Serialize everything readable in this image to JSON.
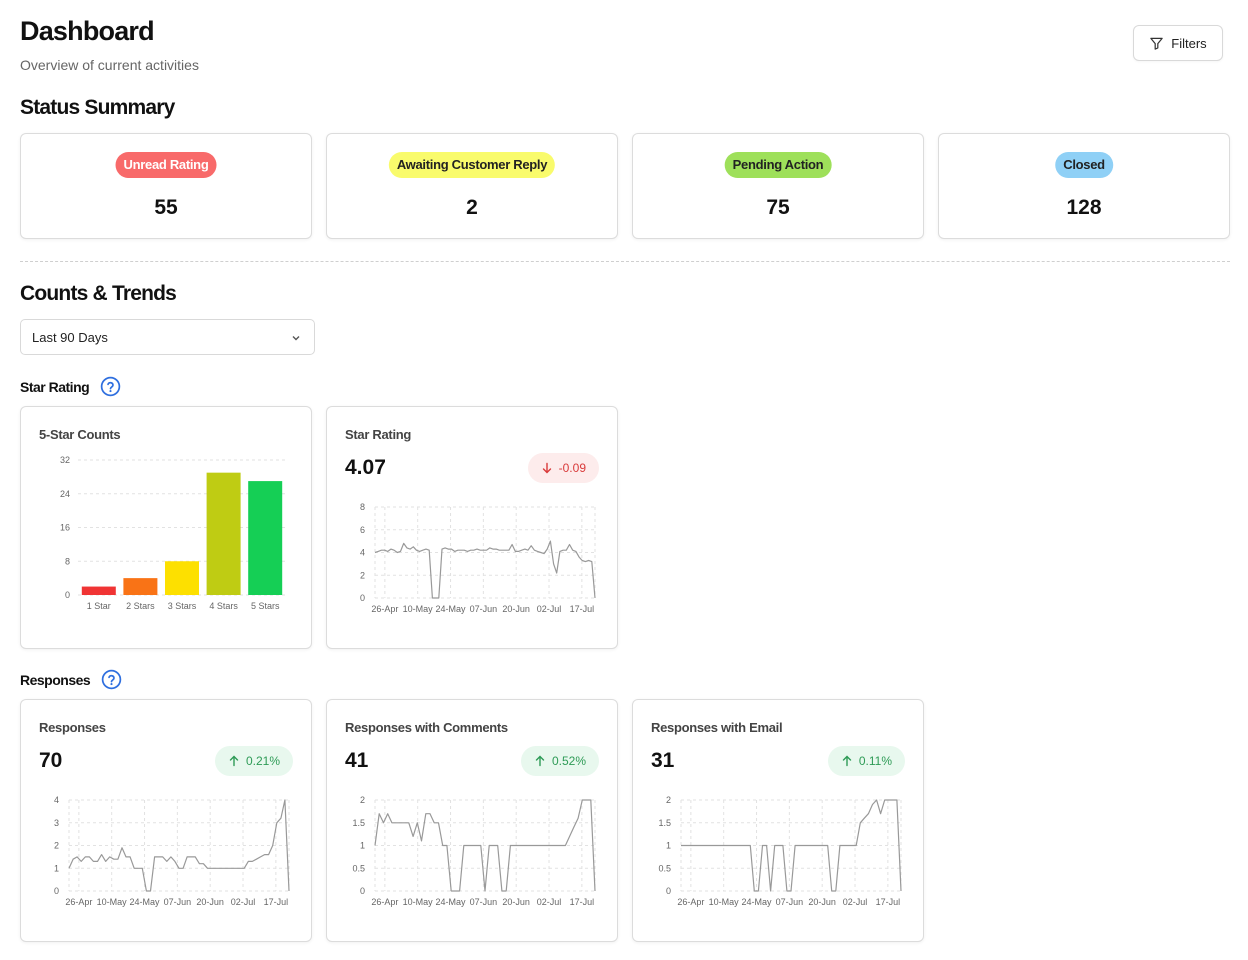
{
  "header": {
    "title": "Dashboard",
    "subtitle": "Overview of current activities",
    "filters_label": "Filters"
  },
  "status_summary": {
    "title": "Status Summary",
    "items": [
      {
        "label": "Unread Rating",
        "count": "55",
        "bg": "#f86a6a",
        "fg": "#ffffff"
      },
      {
        "label": "Awaiting Customer Reply",
        "count": "2",
        "bg": "#f9fb6c",
        "fg": "#222222"
      },
      {
        "label": "Pending Action",
        "count": "75",
        "bg": "#9ee05a",
        "fg": "#222222"
      },
      {
        "label": "Closed",
        "count": "128",
        "bg": "#8fd0f6",
        "fg": "#222222"
      }
    ]
  },
  "counts_trends": {
    "title": "Counts & Trends",
    "range": {
      "selected": "Last 90 Days"
    }
  },
  "star_rating_section": {
    "title": "Star Rating"
  },
  "responses_section": {
    "title": "Responses"
  },
  "cards": {
    "five_star": {
      "title": "5-Star Counts"
    },
    "star_rating": {
      "title": "Star Rating",
      "value": "4.07",
      "delta": "-0.09"
    },
    "responses": {
      "title": "Responses",
      "value": "70",
      "delta": "0.21%"
    },
    "responses_comments": {
      "title": "Responses with Comments",
      "value": "41",
      "delta": "0.52%"
    },
    "responses_email": {
      "title": "Responses with Email",
      "value": "31",
      "delta": "0.11%"
    }
  },
  "colors": {
    "up": "#2e9b56",
    "down": "#d93a3a",
    "line": "#999999",
    "help": "#2f6fdf"
  },
  "icons": {
    "filters": "filter-icon",
    "select": "chevron-down-icon",
    "help": "help-circle-icon",
    "up": "arrow-up-icon",
    "down": "arrow-down-icon"
  },
  "chart_data": [
    {
      "id": "five_star",
      "type": "bar",
      "title": "5-Star Counts",
      "categories": [
        "1 Star",
        "2 Stars",
        "3 Stars",
        "4 Stars",
        "5 Stars"
      ],
      "values": [
        2,
        4,
        8,
        29,
        27
      ],
      "colors": [
        "#f03434",
        "#f97316",
        "#fde000",
        "#bfcc13",
        "#15cf55"
      ],
      "ylim": [
        0,
        32
      ],
      "yticks": [
        0,
        8,
        16,
        24,
        32
      ],
      "grid": true
    },
    {
      "id": "star_rating",
      "type": "line",
      "title": "Star Rating",
      "ylim": [
        0,
        8
      ],
      "yticks": [
        0,
        2,
        4,
        6,
        8
      ],
      "xticks": [
        "26-Apr",
        "10-May",
        "24-May",
        "07-Jun",
        "20-Jun",
        "02-Jul",
        "17-Jul"
      ],
      "values": [
        4.0,
        4.1,
        4.2,
        4.2,
        4.1,
        4.3,
        4.2,
        4.0,
        4.1,
        4.8,
        4.4,
        4.3,
        4.5,
        4.2,
        4.1,
        4.2,
        4.3,
        4.2,
        0,
        0,
        0,
        4.3,
        4.4,
        4.3,
        4.3,
        4.1,
        4.2,
        4.2,
        4.2,
        4.1,
        4.2,
        4.2,
        4.3,
        4.2,
        4.2,
        4.2,
        4.4,
        4.3,
        4.3,
        4.2,
        4.2,
        4.2,
        4.2,
        4.7,
        4.1,
        4.1,
        4.2,
        4.3,
        4.2,
        4.6,
        4.2,
        4.1,
        4.0,
        3.9,
        4.3,
        5.0,
        3.0,
        2.2,
        4.1,
        4.2,
        4.2,
        4.7,
        4.2,
        4.1,
        3.6,
        3.3,
        3.2,
        3.3,
        3.2,
        0
      ],
      "grid": true
    },
    {
      "id": "responses",
      "type": "line",
      "title": "Responses",
      "ylim": [
        0,
        4
      ],
      "yticks": [
        0,
        1,
        2,
        3,
        4
      ],
      "xticks": [
        "26-Apr",
        "10-May",
        "24-May",
        "07-Jun",
        "20-Jun",
        "02-Jul",
        "17-Jul"
      ],
      "values": [
        1.0,
        1.4,
        1.5,
        1.3,
        1.5,
        1.5,
        1.3,
        1.3,
        1.6,
        1.3,
        1.5,
        1.4,
        1.4,
        1.9,
        1.5,
        1.5,
        1.0,
        1.0,
        1.0,
        0,
        0,
        1.5,
        1.5,
        1.5,
        1.3,
        1.5,
        1.3,
        1.0,
        1.0,
        1.5,
        1.5,
        1.5,
        1.2,
        1.2,
        1.0,
        1.0,
        1.0,
        1.0,
        1.0,
        1.0,
        1.0,
        1.0,
        1.0,
        1.0,
        1.3,
        1.3,
        1.4,
        1.5,
        1.6,
        1.6,
        2.0,
        3.0,
        3.2,
        4.0,
        0
      ],
      "grid": true
    },
    {
      "id": "responses_comments",
      "type": "line",
      "title": "Responses with Comments",
      "ylim": [
        0,
        2
      ],
      "yticks": [
        0,
        0.5,
        1,
        1.5,
        2
      ],
      "xticks": [
        "26-Apr",
        "10-May",
        "24-May",
        "07-Jun",
        "20-Jun",
        "02-Jul",
        "17-Jul"
      ],
      "values": [
        1.0,
        1.7,
        1.5,
        1.7,
        1.5,
        1.5,
        1.5,
        1.5,
        1.5,
        1.2,
        1.5,
        1.1,
        1.7,
        1.7,
        1.5,
        1.5,
        1.0,
        1.0,
        0,
        0,
        0,
        1.0,
        1.0,
        1.0,
        1.0,
        1.0,
        0,
        1.0,
        1.0,
        1.0,
        0,
        0,
        1.0,
        1.0,
        1.0,
        1.0,
        1.0,
        1.0,
        1.0,
        1.0,
        1.0,
        1.0,
        1.0,
        1.0,
        1.0,
        1.0,
        1.2,
        1.4,
        1.6,
        2.0,
        2.0,
        2.0,
        0
      ],
      "grid": true
    },
    {
      "id": "responses_email",
      "type": "line",
      "title": "Responses with Email",
      "ylim": [
        0,
        2
      ],
      "yticks": [
        0,
        0.5,
        1,
        1.5,
        2
      ],
      "xticks": [
        "26-Apr",
        "10-May",
        "24-May",
        "07-Jun",
        "20-Jun",
        "02-Jul",
        "17-Jul"
      ],
      "values": [
        1.0,
        1.0,
        1.0,
        1.0,
        1.0,
        1.0,
        1.0,
        1.0,
        1.0,
        1.0,
        1.0,
        1.0,
        1.0,
        1.0,
        1.0,
        1.0,
        1.0,
        1.0,
        0,
        0,
        1.0,
        1.0,
        0,
        1.0,
        1.0,
        1.0,
        0,
        0,
        1.0,
        1.0,
        1.0,
        1.0,
        1.0,
        1.0,
        1.0,
        1.0,
        1.0,
        0,
        0,
        1.0,
        1.0,
        1.0,
        1.0,
        1.0,
        1.5,
        1.6,
        1.7,
        1.9,
        2.0,
        1.7,
        2.0,
        2.0,
        2.0,
        2.0,
        0
      ],
      "grid": true
    }
  ]
}
